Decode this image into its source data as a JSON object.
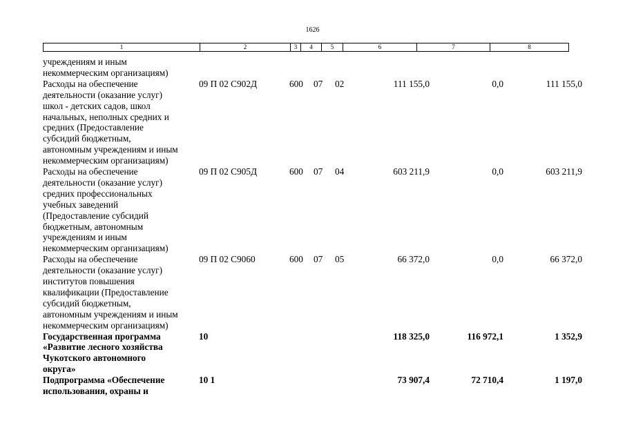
{
  "page_number": "1626",
  "header_cols": [
    "1",
    "2",
    "3",
    "4",
    "5",
    "6",
    "7",
    "8"
  ],
  "rows": [
    {
      "bold": false,
      "lines": [
        "учреждениям и иным",
        "некоммерческим организациям)"
      ],
      "code": "",
      "vr": "",
      "rz": "",
      "pr": "",
      "s1": "",
      "s2": "",
      "s3": ""
    },
    {
      "bold": false,
      "lines": [
        "Расходы на обеспечение",
        "деятельности (оказание услуг)",
        "школ - детских садов, школ",
        "начальных, неполных средних и",
        "средних (Предоставление",
        "субсидий бюджетным,",
        "автономным учреждениям и иным",
        "некоммерческим организациям)"
      ],
      "code": "09 П 02 С902Д",
      "vr": "600",
      "rz": "07",
      "pr": "02",
      "s1": "111 155,0",
      "s2": "0,0",
      "s3": "111 155,0"
    },
    {
      "bold": false,
      "lines": [
        "Расходы на обеспечение",
        "деятельности (оказание услуг)",
        "средних профессиональных",
        "учебных заведений",
        "(Предоставление субсидий",
        "бюджетным, автономным",
        "учреждениям и иным",
        "некоммерческим организациям)"
      ],
      "code": "09 П 02 С905Д",
      "vr": "600",
      "rz": "07",
      "pr": "04",
      "s1": "603 211,9",
      "s2": "0,0",
      "s3": "603 211,9"
    },
    {
      "bold": false,
      "lines": [
        "Расходы на обеспечение",
        "деятельности (оказание услуг)",
        "институтов повышения",
        "квалификации (Предоставление",
        "субсидий бюджетным,",
        "автономным учреждениям и иным",
        "некоммерческим организациям)"
      ],
      "code": "09 П 02 С9060",
      "vr": "600",
      "rz": "07",
      "pr": "05",
      "s1": "66 372,0",
      "s2": "0,0",
      "s3": "66 372,0"
    },
    {
      "bold": true,
      "lines": [
        "Государственная программа",
        "«Развитие лесного хозяйства",
        "Чукотского автономного",
        "округа»"
      ],
      "code": "10",
      "vr": "",
      "rz": "",
      "pr": "",
      "s1": "118 325,0",
      "s2": "116 972,1",
      "s3": "1 352,9"
    },
    {
      "bold": true,
      "lines": [
        "Подпрограмма «Обеспечение",
        "использования, охраны и"
      ],
      "code": "10 1",
      "vr": "",
      "rz": "",
      "pr": "",
      "s1": "73 907,4",
      "s2": "72 710,4",
      "s3": "1 197,0"
    }
  ]
}
